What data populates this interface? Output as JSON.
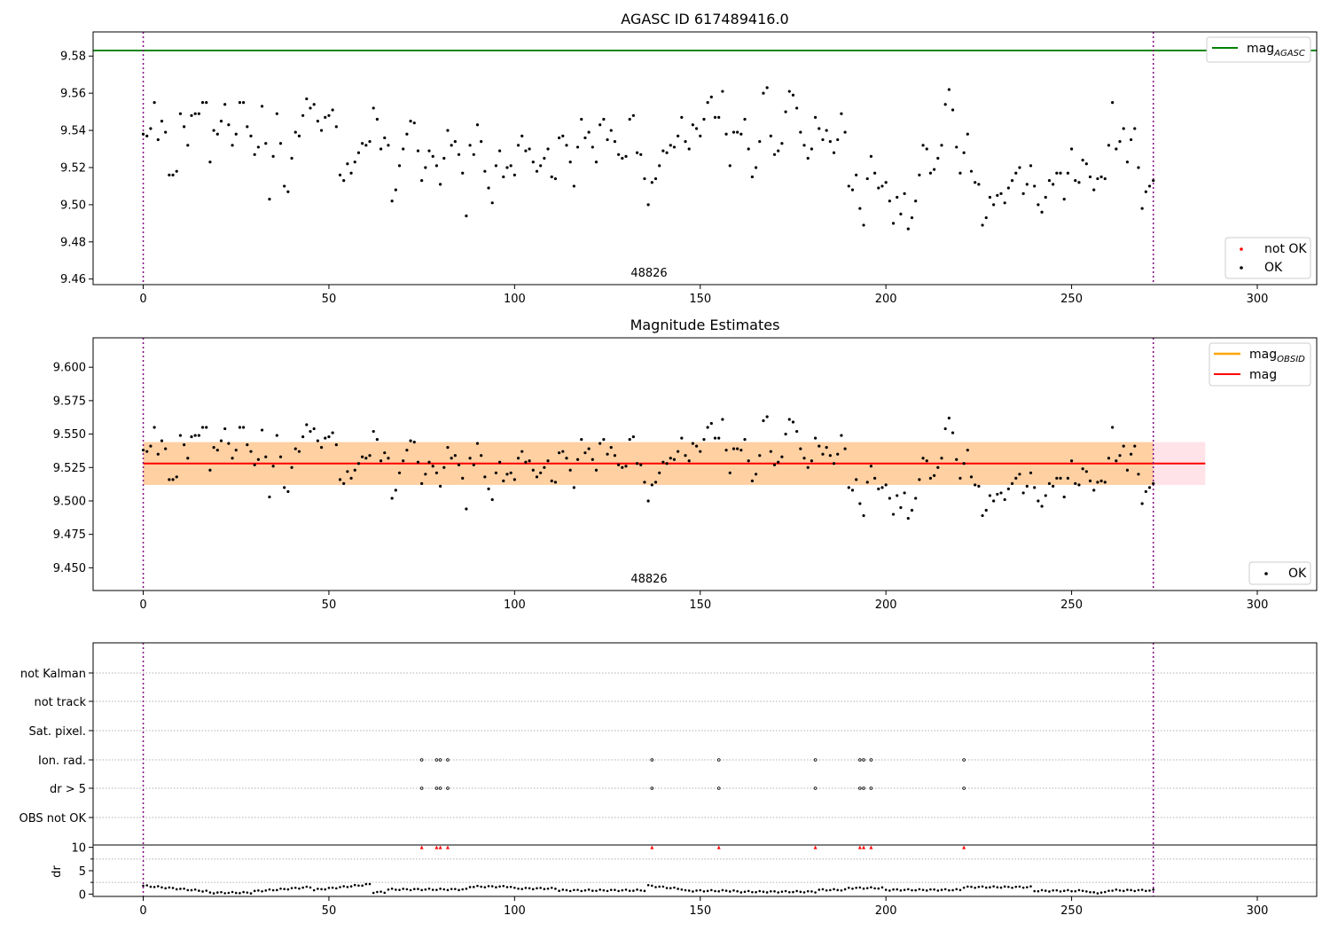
{
  "chart_data": [
    {
      "type": "scatter",
      "title": "AGASC ID 617489416.0",
      "xlim": [
        -13.5,
        316
      ],
      "ylim": [
        9.457,
        9.593
      ],
      "xticks": [
        0,
        50,
        100,
        150,
        200,
        250,
        300
      ],
      "yticks": [
        9.46,
        9.48,
        9.5,
        9.52,
        9.54,
        9.56,
        9.58
      ],
      "grid": false,
      "legend_position": "top-right + bottom-right",
      "annotation": "48826",
      "hlines": [
        {
          "name": "mag_AGASC",
          "value": 9.583,
          "color": "#008000"
        }
      ],
      "vlines": [
        0,
        272
      ],
      "legend": [
        {
          "label": "mag",
          "subscript": "AGASC",
          "marker": "line",
          "color": "#008000"
        },
        {
          "label": "not OK",
          "marker": "dot",
          "color": "#ff0000"
        },
        {
          "label": "OK",
          "marker": "dot",
          "color": "#000000"
        }
      ],
      "series": [
        {
          "name": "OK",
          "color": "#000000",
          "x_start": 0,
          "x_step": 1,
          "values": []
        },
        {
          "name": "not OK",
          "color": "#ff0000",
          "values": []
        }
      ]
    },
    {
      "type": "scatter",
      "title": "Magnitude Estimates",
      "xlim": [
        -13.5,
        316
      ],
      "ylim": [
        9.433,
        9.622
      ],
      "xticks": [
        0,
        50,
        100,
        150,
        200,
        250,
        300
      ],
      "yticks": [
        9.45,
        9.475,
        9.5,
        9.525,
        9.55,
        9.575,
        9.6
      ],
      "grid": false,
      "annotation": "48826",
      "vlines": [
        0,
        272
      ],
      "hlines": [
        {
          "name": "mag",
          "value": 9.528,
          "color": "#ff0000",
          "x_range": [
            0,
            286
          ]
        }
      ],
      "bands": [
        {
          "name": "mag",
          "range": [
            9.512,
            9.544
          ],
          "x_range": [
            0,
            286
          ],
          "color": "#ffc0cb"
        },
        {
          "name": "mag_OBSID",
          "range": [
            9.512,
            9.544
          ],
          "x_range": [
            0,
            272
          ],
          "color": "#ffa500"
        }
      ],
      "legend": [
        {
          "label": "mag",
          "subscript": "OBSID",
          "marker": "line",
          "color": "#ffa500"
        },
        {
          "label": "mag",
          "marker": "line",
          "color": "#ff0000"
        },
        {
          "label": "OK",
          "marker": "dot",
          "color": "#000000"
        }
      ]
    },
    {
      "type": "scatter",
      "title": "",
      "xlim": [
        -13.5,
        316
      ],
      "xticks": [
        0,
        50,
        100,
        150,
        200,
        250,
        300
      ],
      "vlines": [
        0,
        272
      ],
      "categories": [
        "not Kalman",
        "not track",
        "Sat. pixel.",
        "Ion. rad.",
        "dr > 5",
        "OBS not OK"
      ],
      "flag_x": [
        75,
        79,
        80,
        82,
        137,
        155,
        181,
        193,
        194,
        196,
        221
      ],
      "flags": {
        "not Kalman": [],
        "not track": [],
        "Sat. pixel.": [],
        "Ion. rad.": [
          75,
          79,
          80,
          82,
          137,
          155,
          181,
          193,
          194,
          196,
          221
        ],
        "dr > 5": [
          75,
          79,
          80,
          82,
          137,
          155,
          181,
          193,
          194,
          196,
          221
        ],
        "OBS not OK": []
      },
      "dr": {
        "ylabel": "dr",
        "yticks": [
          0,
          5,
          10
        ],
        "ylim": [
          -0.5,
          10.5
        ],
        "values": [],
        "clipped_x": [
          75,
          79,
          80,
          82,
          137,
          155,
          181,
          193,
          194,
          196,
          221
        ],
        "clipped_value": 10
      }
    }
  ]
}
